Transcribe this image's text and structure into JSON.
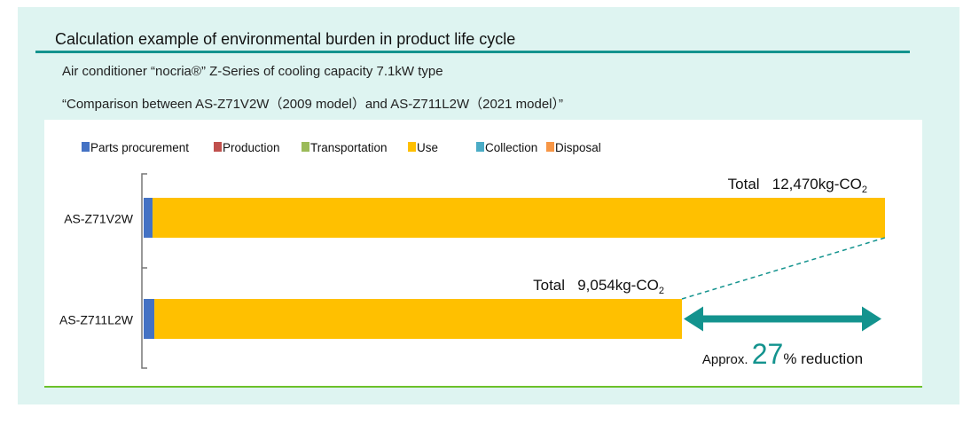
{
  "header": {
    "title": "Calculation example of environmental burden in product life cycle",
    "subtitle1": "Air conditioner “nocria®” Z-Series of cooling capacity 7.1kW type",
    "subtitle2": "“Comparison between AS-Z71V2W（2009 model）and AS-Z711L2W（2021 model）”"
  },
  "colors": {
    "accent": "#13938e",
    "frame_bg": "#def4f1",
    "bottom_rule": "#6cc02a"
  },
  "chart_data": {
    "type": "bar",
    "orientation": "horizontal",
    "stacked": true,
    "categories": [
      "AS-Z71V2W",
      "AS-Z711L2W"
    ],
    "legend_placement": "top",
    "grid": false,
    "series": [
      {
        "name": "Parts procurement",
        "color": "#4472c4",
        "values": [
          150,
          180
        ]
      },
      {
        "name": "Production",
        "color": "#c0504d",
        "values": [
          0,
          0
        ]
      },
      {
        "name": "Transportation",
        "color": "#9bbb59",
        "values": [
          0,
          0
        ]
      },
      {
        "name": "Use",
        "color": "#ffc000",
        "values": [
          12320,
          8874
        ]
      },
      {
        "name": "Collection",
        "color": "#4bacc6",
        "values": [
          0,
          0
        ]
      },
      {
        "name": "Disposal",
        "color": "#f79646",
        "values": [
          0,
          0
        ]
      }
    ],
    "totals": [
      12470,
      9054
    ],
    "total_labels": [
      {
        "prefix": "Total",
        "value": "12,470kg-CO",
        "sub": "2"
      },
      {
        "prefix": "Total",
        "value": "9,054kg-CO",
        "sub": "2"
      }
    ],
    "annotation": {
      "pre": "Approx.",
      "number": "27",
      "post": "% reduction"
    },
    "xlim": [
      0,
      12470
    ]
  }
}
